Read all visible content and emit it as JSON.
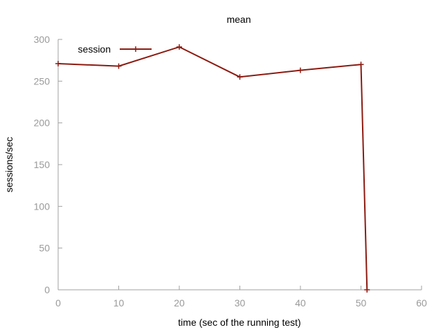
{
  "chart_data": {
    "type": "line",
    "title": "mean",
    "xlabel": "time (sec of the running test)",
    "ylabel": "sessions/sec",
    "xlim": [
      0,
      60
    ],
    "ylim": [
      0,
      300
    ],
    "xticks": [
      0,
      10,
      20,
      30,
      40,
      50,
      60
    ],
    "yticks": [
      0,
      50,
      100,
      150,
      200,
      250,
      300
    ],
    "grid": false,
    "legend_position": "top-left",
    "series": [
      {
        "name": "session",
        "color": "#8b1a10",
        "marker": "plus",
        "points": [
          {
            "x": 0,
            "y": 271
          },
          {
            "x": 10,
            "y": 268
          },
          {
            "x": 20,
            "y": 291
          },
          {
            "x": 30,
            "y": 255
          },
          {
            "x": 40,
            "y": 263
          },
          {
            "x": 50,
            "y": 270
          },
          {
            "x": 51,
            "y": 0
          }
        ]
      }
    ]
  }
}
